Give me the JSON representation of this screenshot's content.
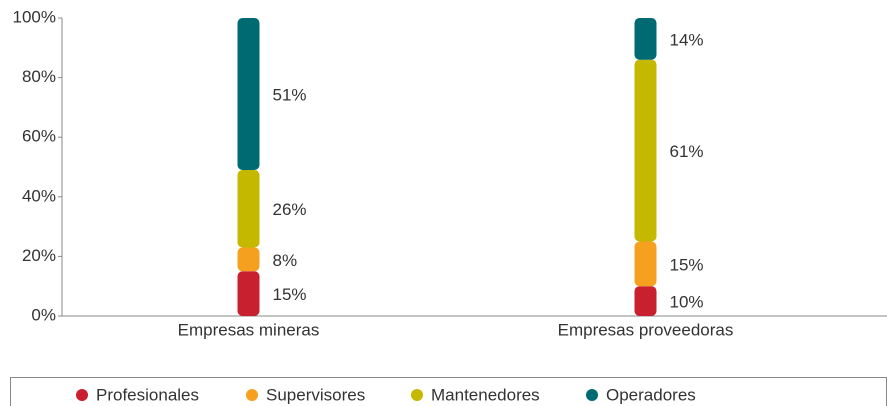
{
  "chart_data": {
    "type": "stacked_bar",
    "categories": [
      "Empresas mineras",
      "Empresas proveedoras"
    ],
    "series": [
      {
        "name": "Profesionales",
        "color": "#c8202f",
        "values": [
          15,
          10
        ],
        "value_labels": [
          "15%",
          "10%"
        ]
      },
      {
        "name": "Supervisores",
        "color": "#f5a01e",
        "values": [
          8,
          15
        ],
        "value_labels": [
          "8%",
          "15%"
        ]
      },
      {
        "name": "Mantenedores",
        "color": "#c5b800",
        "values": [
          26,
          61
        ],
        "value_labels": [
          "26%",
          "61%"
        ]
      },
      {
        "name": "Operadores",
        "color": "#006a73",
        "values": [
          51,
          14
        ],
        "value_labels": [
          "51%",
          "14%"
        ]
      }
    ],
    "ylim": [
      0,
      100
    ],
    "yticks": [
      {
        "value": 0,
        "label": "0%"
      },
      {
        "value": 20,
        "label": "20%"
      },
      {
        "value": 40,
        "label": "40%"
      },
      {
        "value": 60,
        "label": "60%"
      },
      {
        "value": 80,
        "label": "80%"
      },
      {
        "value": 100,
        "label": "100%"
      }
    ],
    "legend": "bottom"
  }
}
